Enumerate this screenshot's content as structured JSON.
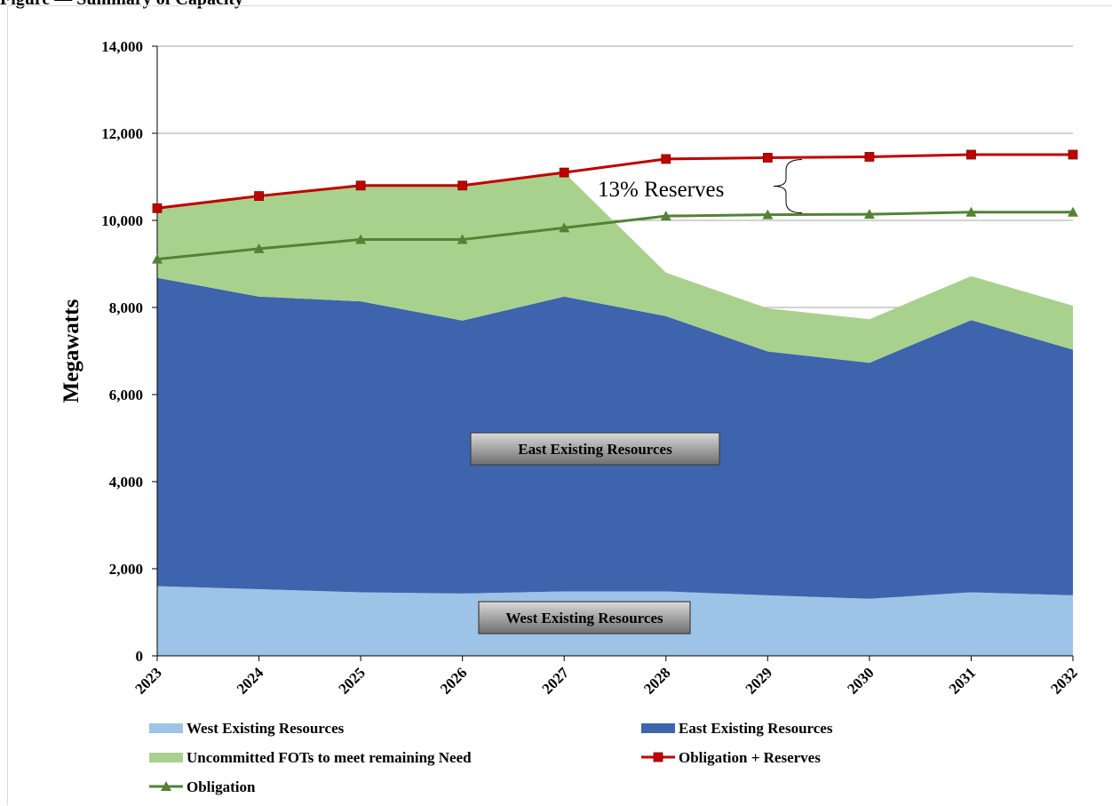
{
  "page": {
    "cut_title": "Figure — Summary of Capacity"
  },
  "chart_data": {
    "type": "area",
    "title": "",
    "xlabel": "",
    "ylabel": "Megawatts",
    "categories": [
      "2023",
      "2024",
      "2025",
      "2026",
      "2027",
      "2028",
      "2029",
      "2030",
      "2031",
      "2032"
    ],
    "ylim": [
      0,
      14000
    ],
    "yticks": [
      0,
      2000,
      4000,
      6000,
      8000,
      10000,
      12000,
      14000
    ],
    "ytick_labels": [
      "0",
      "2,000",
      "4,000",
      "6,000",
      "8,000",
      "10,000",
      "12,000",
      "14,000"
    ],
    "grid": true,
    "legend_placement": "bottom",
    "stacked_series": [
      {
        "name": "West Existing Resources",
        "color": "#9dc3e6",
        "values": [
          1600,
          1530,
          1460,
          1430,
          1480,
          1480,
          1390,
          1310,
          1460,
          1390
        ]
      },
      {
        "name": "East Existing Resources",
        "color": "#3d64ad",
        "values": [
          7080,
          6720,
          6680,
          6270,
          6770,
          6320,
          5600,
          5420,
          6250,
          5640
        ]
      },
      {
        "name": "Uncommitted FOTs to meet remaining Need",
        "color": "#a9d18e",
        "values": [
          1600,
          2320,
          2660,
          3100,
          2850,
          1000,
          990,
          1000,
          1010,
          1010
        ]
      }
    ],
    "line_series": [
      {
        "name": "Obligation + Reserves",
        "color": "#c00000",
        "marker": "square",
        "values": [
          10280,
          10560,
          10800,
          10800,
          11100,
          11410,
          11440,
          11460,
          11510,
          11510
        ]
      },
      {
        "name": "Obligation",
        "color": "#548235",
        "marker": "triangle",
        "values": [
          9110,
          9350,
          9560,
          9560,
          9830,
          10100,
          10130,
          10140,
          10190,
          10190
        ]
      }
    ],
    "area_labels": {
      "east": "East Existing Resources",
      "west": "West Existing Resources"
    },
    "annotations": [
      {
        "text": "13% Reserves"
      }
    ]
  },
  "colors": {
    "grid": "#a6a6a6",
    "axis": "#000000"
  }
}
